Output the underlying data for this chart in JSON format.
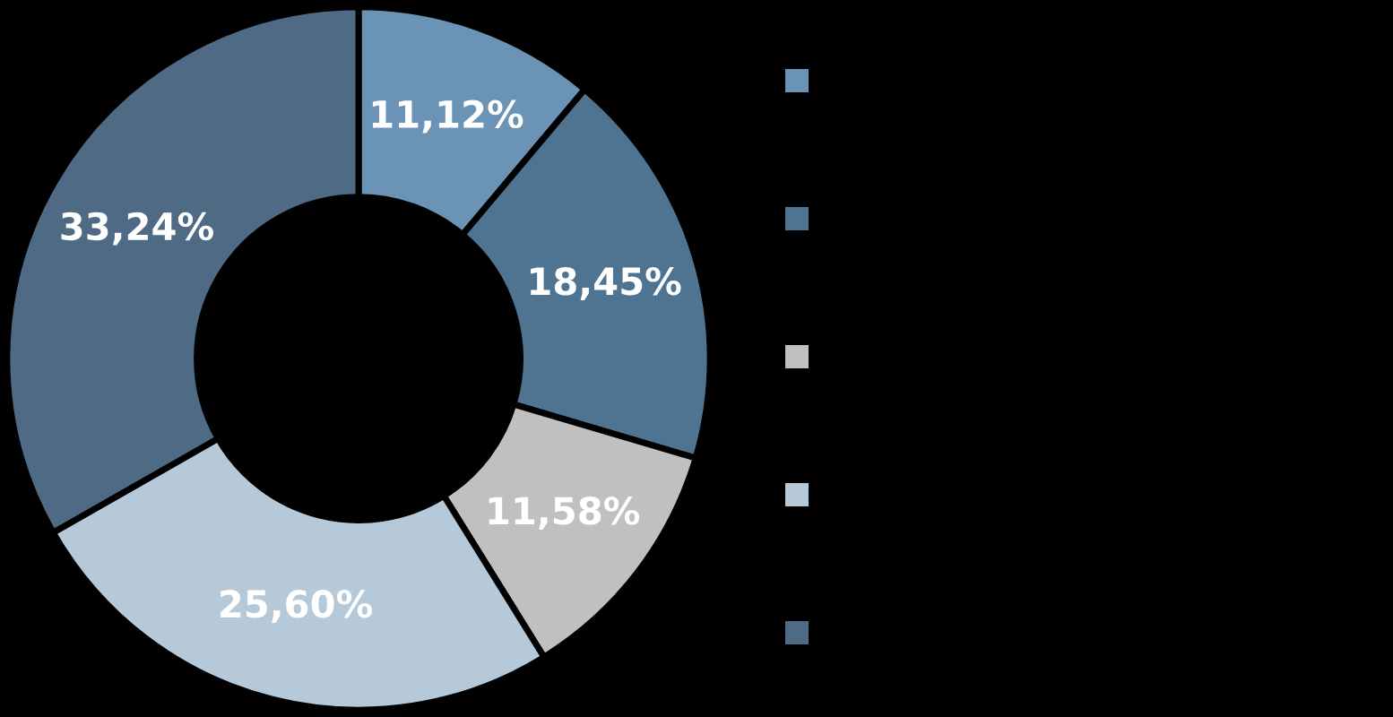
{
  "chart_data": {
    "type": "donut",
    "categories": [
      null,
      null,
      null,
      null,
      null
    ],
    "values": [
      11.12,
      18.45,
      11.58,
      25.6,
      33.24
    ],
    "colors": [
      "#6a93b5",
      "#4f7492",
      "#c0c0c0",
      "#b6c9d9",
      "#4e6a85"
    ],
    "value_labels": [
      "11,12%",
      "18,45%",
      "11,58%",
      "25,60%",
      "33,24%"
    ]
  }
}
